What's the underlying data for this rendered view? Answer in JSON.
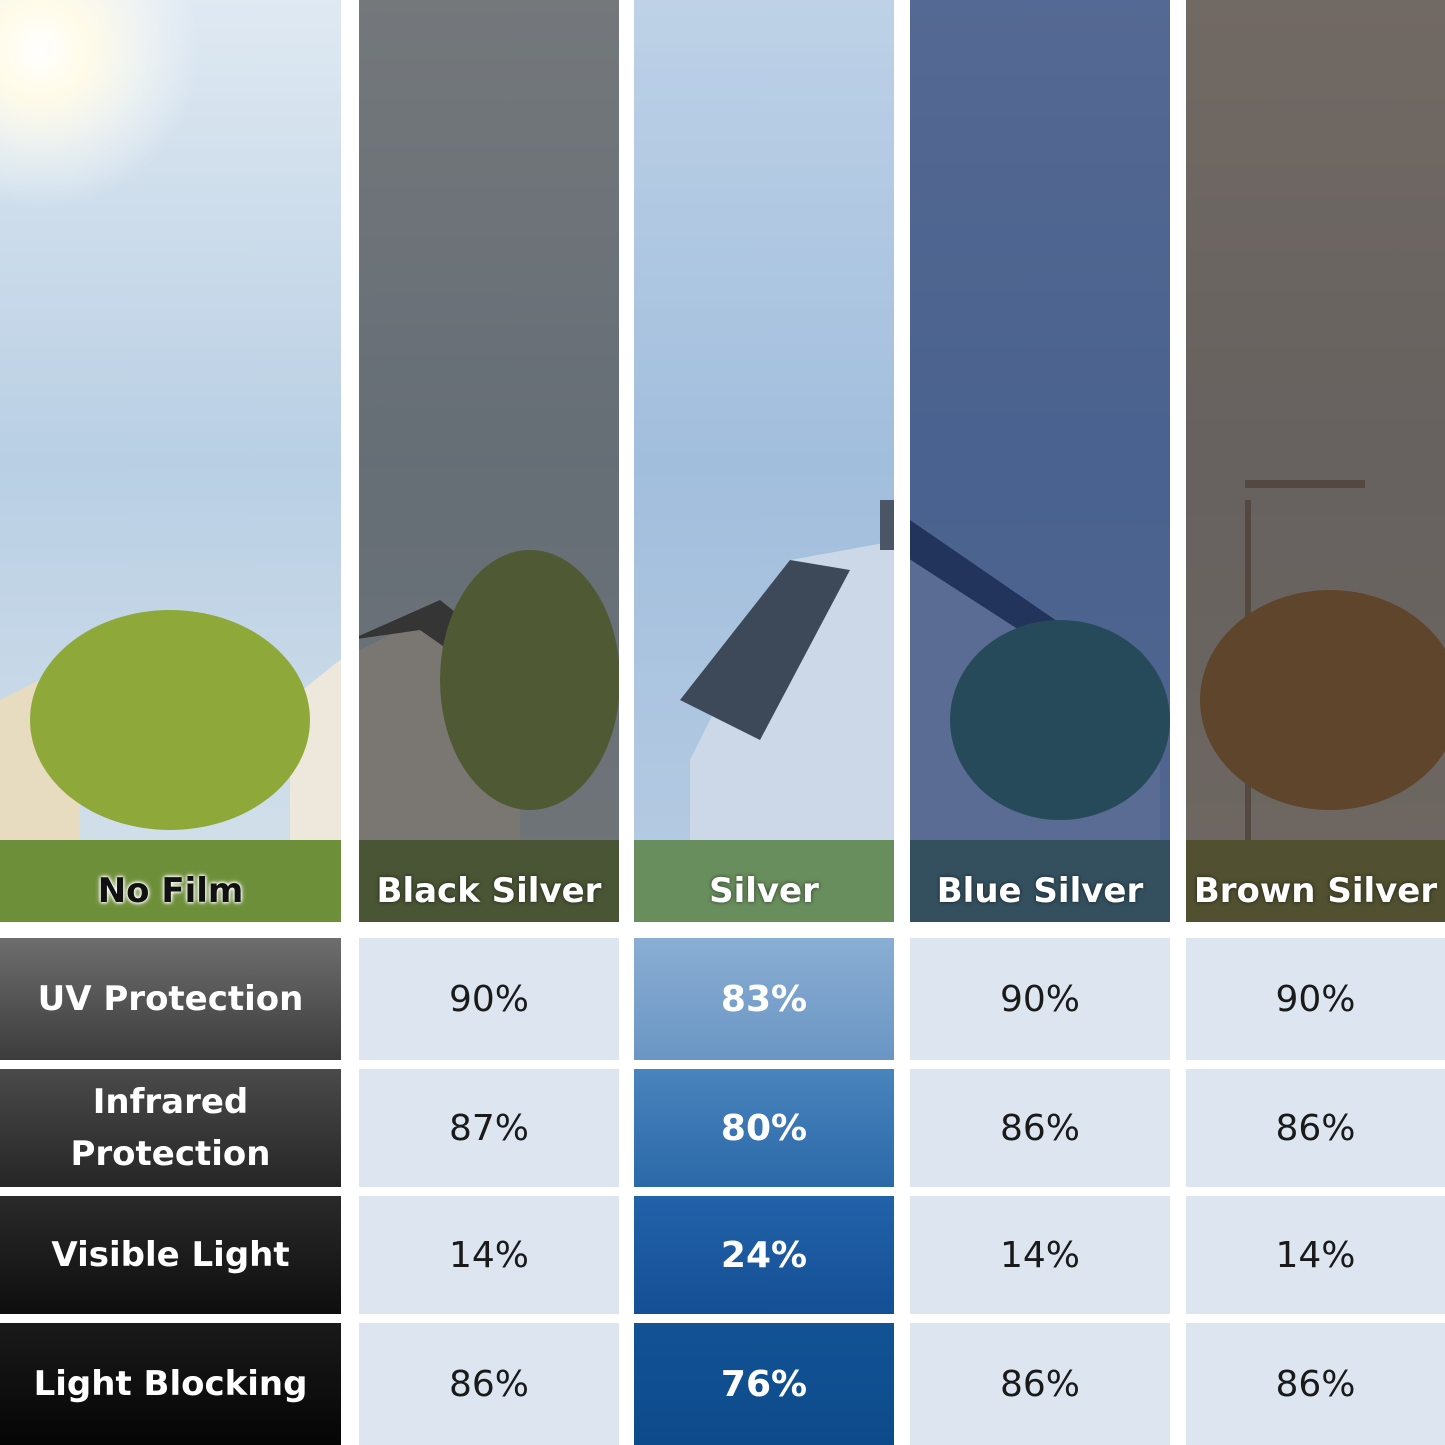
{
  "films": [
    {
      "label": "No Film"
    },
    {
      "label": "Black Silver"
    },
    {
      "label": "Silver"
    },
    {
      "label": "Blue Silver"
    },
    {
      "label": "Brown Silver"
    }
  ],
  "rows": [
    {
      "label": "UV Protection",
      "values": [
        "90%",
        "83%",
        "90%",
        "90%"
      ]
    },
    {
      "label": "Infrared Protection",
      "values": [
        "87%",
        "80%",
        "86%",
        "86%"
      ]
    },
    {
      "label": "Visible Light",
      "values": [
        "14%",
        "24%",
        "14%",
        "14%"
      ]
    },
    {
      "label": "Light Blocking",
      "values": [
        "86%",
        "76%",
        "86%",
        "86%"
      ]
    }
  ],
  "colors": {
    "cell_bg": "#dde6f0",
    "highlight": "#1f5ea6"
  }
}
